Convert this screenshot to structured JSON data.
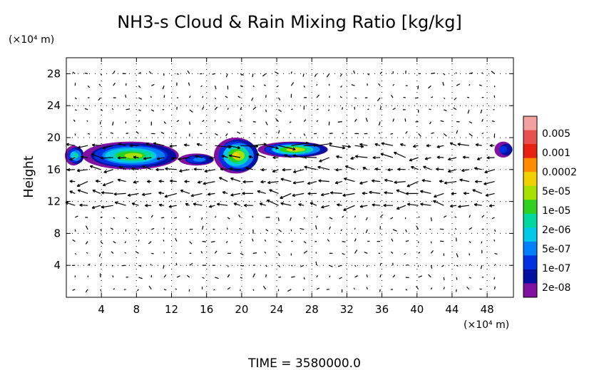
{
  "chart_data": {
    "type": "heatmap",
    "title": "NH3-s Cloud & Rain Mixing Ratio [kg/kg]",
    "ylabel": "Height",
    "y_unit": "(×10⁴ m)",
    "x_unit": "(×10⁴ m)",
    "footer": "TIME  =  3580000.0",
    "xlim": [
      0,
      51
    ],
    "ylim": [
      0,
      30
    ],
    "x_ticks": [
      "4",
      "8",
      "12",
      "16",
      "20",
      "24",
      "28",
      "32",
      "36",
      "40",
      "44",
      "48"
    ],
    "y_ticks": [
      "4",
      "8",
      "12",
      "16",
      "20",
      "24",
      "28"
    ],
    "colorbar": {
      "labels": [
        "0.005",
        "0.001",
        "0.0002",
        "5e-05",
        "1e-05",
        "2e-06",
        "5e-07",
        "1e-07",
        "2e-08"
      ],
      "colors": [
        "#f4a0a0",
        "#e85050",
        "#e82010",
        "#ff8c00",
        "#f0d000",
        "#a8e000",
        "#30d020",
        "#00d8a0",
        "#00c8e8",
        "#0080ff",
        "#0030e0",
        "#0010a0",
        "#8010a0"
      ]
    },
    "cloud_regions": [
      {
        "x_range": [
          0,
          2
        ],
        "y_range": [
          16.5,
          19
        ],
        "max_level": "1e-05"
      },
      {
        "x_range": [
          2,
          13
        ],
        "y_range": [
          16,
          19.5
        ],
        "max_level": "0.0002"
      },
      {
        "x_range": [
          13,
          17
        ],
        "y_range": [
          16.5,
          18
        ],
        "max_level": "5e-07"
      },
      {
        "x_range": [
          17,
          22
        ],
        "y_range": [
          15.5,
          20
        ],
        "max_level": "0.001"
      },
      {
        "x_range": [
          22,
          30
        ],
        "y_range": [
          17.5,
          19.5
        ],
        "max_level": "0.001"
      },
      {
        "x_range": [
          49,
          51
        ],
        "y_range": [
          17.5,
          19.5
        ],
        "max_level": "1e-07"
      }
    ]
  }
}
